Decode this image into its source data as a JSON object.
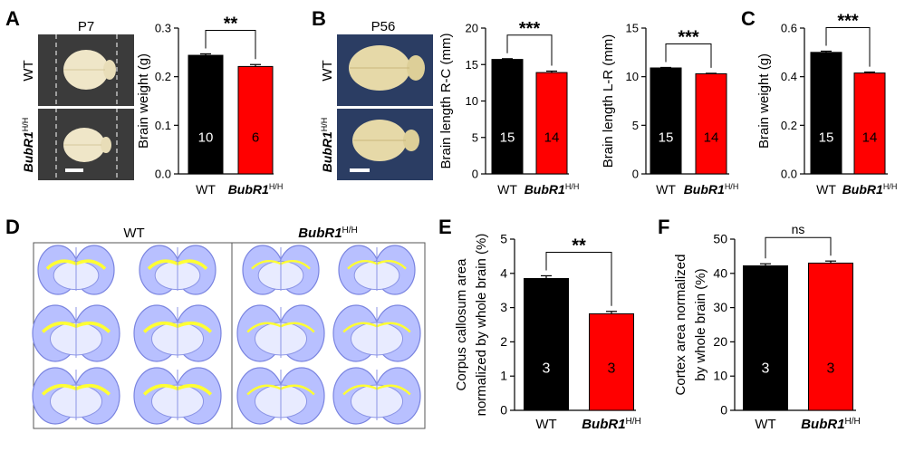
{
  "colors": {
    "wt": "#000000",
    "mutant": "#ff0000",
    "brain": "#efe6c8",
    "brain_bg": "#3b3b3b",
    "brain_bg_b": "#2b3d63",
    "slice": "#b8c0ff",
    "slice_stroke": "#7a84e0",
    "cc": "#ffff33"
  },
  "panels": {
    "A": {
      "letter": "A",
      "stage": "P7",
      "row1": "WT",
      "row2_main": "BubR1",
      "row2_sup": "H/H"
    },
    "B": {
      "letter": "B",
      "stage": "P56",
      "row1": "WT",
      "row2_main": "BubR1",
      "row2_sup": "H/H"
    },
    "C": {
      "letter": "C"
    },
    "D": {
      "letter": "D",
      "col1": "WT",
      "col2_main": "BubR1",
      "col2_sup": "H/H"
    },
    "E": {
      "letter": "E"
    },
    "F": {
      "letter": "F"
    }
  },
  "chart_data": [
    {
      "id": "A",
      "type": "bar",
      "categories": [
        {
          "main": "WT",
          "sup": ""
        },
        {
          "main": "BubR1",
          "sup": "H/H"
        }
      ],
      "values": [
        0.244,
        0.221
      ],
      "errors": [
        0.003,
        0.004
      ],
      "n": [
        "10",
        "6"
      ],
      "ylabel": "Brain weight (g)",
      "ylim": [
        0,
        0.3
      ],
      "yticks": [
        "0.0",
        "0.1",
        "0.2",
        "0.3"
      ],
      "tickvals": [
        0,
        0.1,
        0.2,
        0.3
      ],
      "sig": "**"
    },
    {
      "id": "B1",
      "type": "bar",
      "categories": [
        {
          "main": "WT",
          "sup": ""
        },
        {
          "main": "BubR1",
          "sup": "H/H"
        }
      ],
      "values": [
        15.7,
        13.9
      ],
      "errors": [
        0.1,
        0.2
      ],
      "n": [
        "15",
        "14"
      ],
      "ylabel": "Brain length R-C (mm)",
      "ylim": [
        0,
        20
      ],
      "yticks": [
        "0",
        "5",
        "10",
        "15",
        "20"
      ],
      "tickvals": [
        0,
        5,
        10,
        15,
        20
      ],
      "sig": "***"
    },
    {
      "id": "B2",
      "type": "bar",
      "categories": [
        {
          "main": "WT",
          "sup": ""
        },
        {
          "main": "BubR1",
          "sup": "H/H"
        }
      ],
      "values": [
        10.9,
        10.3
      ],
      "errors": [
        0.05,
        0.05
      ],
      "n": [
        "15",
        "14"
      ],
      "ylabel": "Brain length L-R (mm)",
      "ylim": [
        0,
        15
      ],
      "yticks": [
        "0",
        "5",
        "10",
        "15"
      ],
      "tickvals": [
        0,
        5,
        10,
        15
      ],
      "sig": "***"
    },
    {
      "id": "C",
      "type": "bar",
      "categories": [
        {
          "main": "WT",
          "sup": ""
        },
        {
          "main": "BubR1",
          "sup": "H/H"
        }
      ],
      "values": [
        0.5,
        0.415
      ],
      "errors": [
        0.005,
        0.004
      ],
      "n": [
        "15",
        "14"
      ],
      "ylabel": "Brain weight (g)",
      "ylim": [
        0,
        0.6
      ],
      "yticks": [
        "0.0",
        "0.2",
        "0.4",
        "0.6"
      ],
      "tickvals": [
        0,
        0.2,
        0.4,
        0.6
      ],
      "sig": "***"
    },
    {
      "id": "E",
      "type": "bar",
      "categories": [
        {
          "main": "WT",
          "sup": ""
        },
        {
          "main": "BubR1",
          "sup": "H/H"
        }
      ],
      "values": [
        3.85,
        2.82
      ],
      "errors": [
        0.08,
        0.07
      ],
      "n": [
        "3",
        "3"
      ],
      "ylabel": "Corpus callosum area",
      "ylabel2": "normalized by whole brain (%)",
      "ylim": [
        0,
        5
      ],
      "yticks": [
        "0",
        "1",
        "2",
        "3",
        "4",
        "5"
      ],
      "tickvals": [
        0,
        1,
        2,
        3,
        4,
        5
      ],
      "sig": "**"
    },
    {
      "id": "F",
      "type": "bar",
      "categories": [
        {
          "main": "WT",
          "sup": ""
        },
        {
          "main": "BubR1",
          "sup": "H/H"
        }
      ],
      "values": [
        42.2,
        43.0
      ],
      "errors": [
        0.6,
        0.6
      ],
      "n": [
        "3",
        "3"
      ],
      "ylabel": "Cortex area normalized",
      "ylabel2": "by whole brain (%)",
      "ylim": [
        0,
        50
      ],
      "yticks": [
        "0",
        "10",
        "20",
        "30",
        "40",
        "50"
      ],
      "tickvals": [
        0,
        10,
        20,
        30,
        40,
        50
      ],
      "sig": "ns"
    }
  ]
}
